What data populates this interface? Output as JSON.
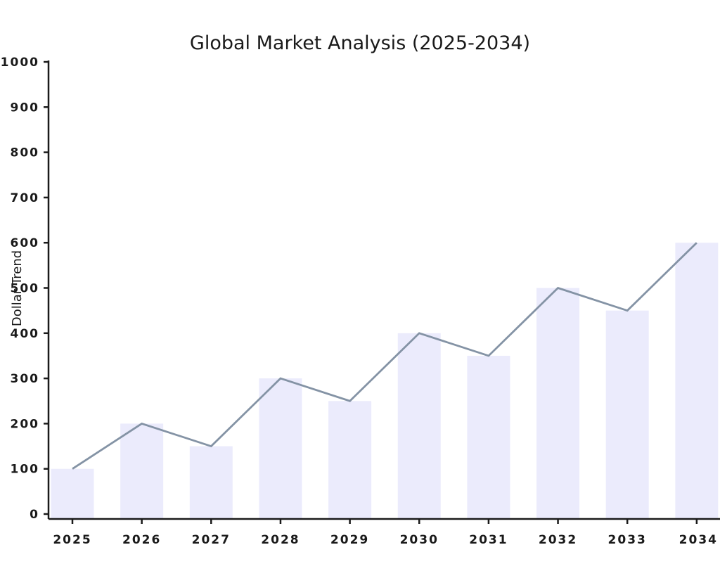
{
  "chart_data": {
    "type": "bar",
    "title": "Global Market Analysis (2025-2034)",
    "ylabel": "Dollar Trend",
    "xlabel": "",
    "categories": [
      "2025",
      "2026",
      "2027",
      "2028",
      "2029",
      "2030",
      "2031",
      "2032",
      "2033",
      "2034"
    ],
    "ylim": [
      0,
      1000
    ],
    "yticks": [
      0,
      100,
      200,
      300,
      400,
      500,
      600,
      700,
      800,
      900,
      1000
    ],
    "grid": false,
    "series": [
      {
        "type": "bar",
        "values": [
          100,
          200,
          150,
          300,
          250,
          400,
          350,
          500,
          450,
          600
        ],
        "color": "#ebebfc"
      },
      {
        "type": "line",
        "values": [
          100,
          200,
          150,
          300,
          250,
          400,
          350,
          500,
          450,
          600
        ],
        "color": "#8493a5"
      }
    ]
  }
}
